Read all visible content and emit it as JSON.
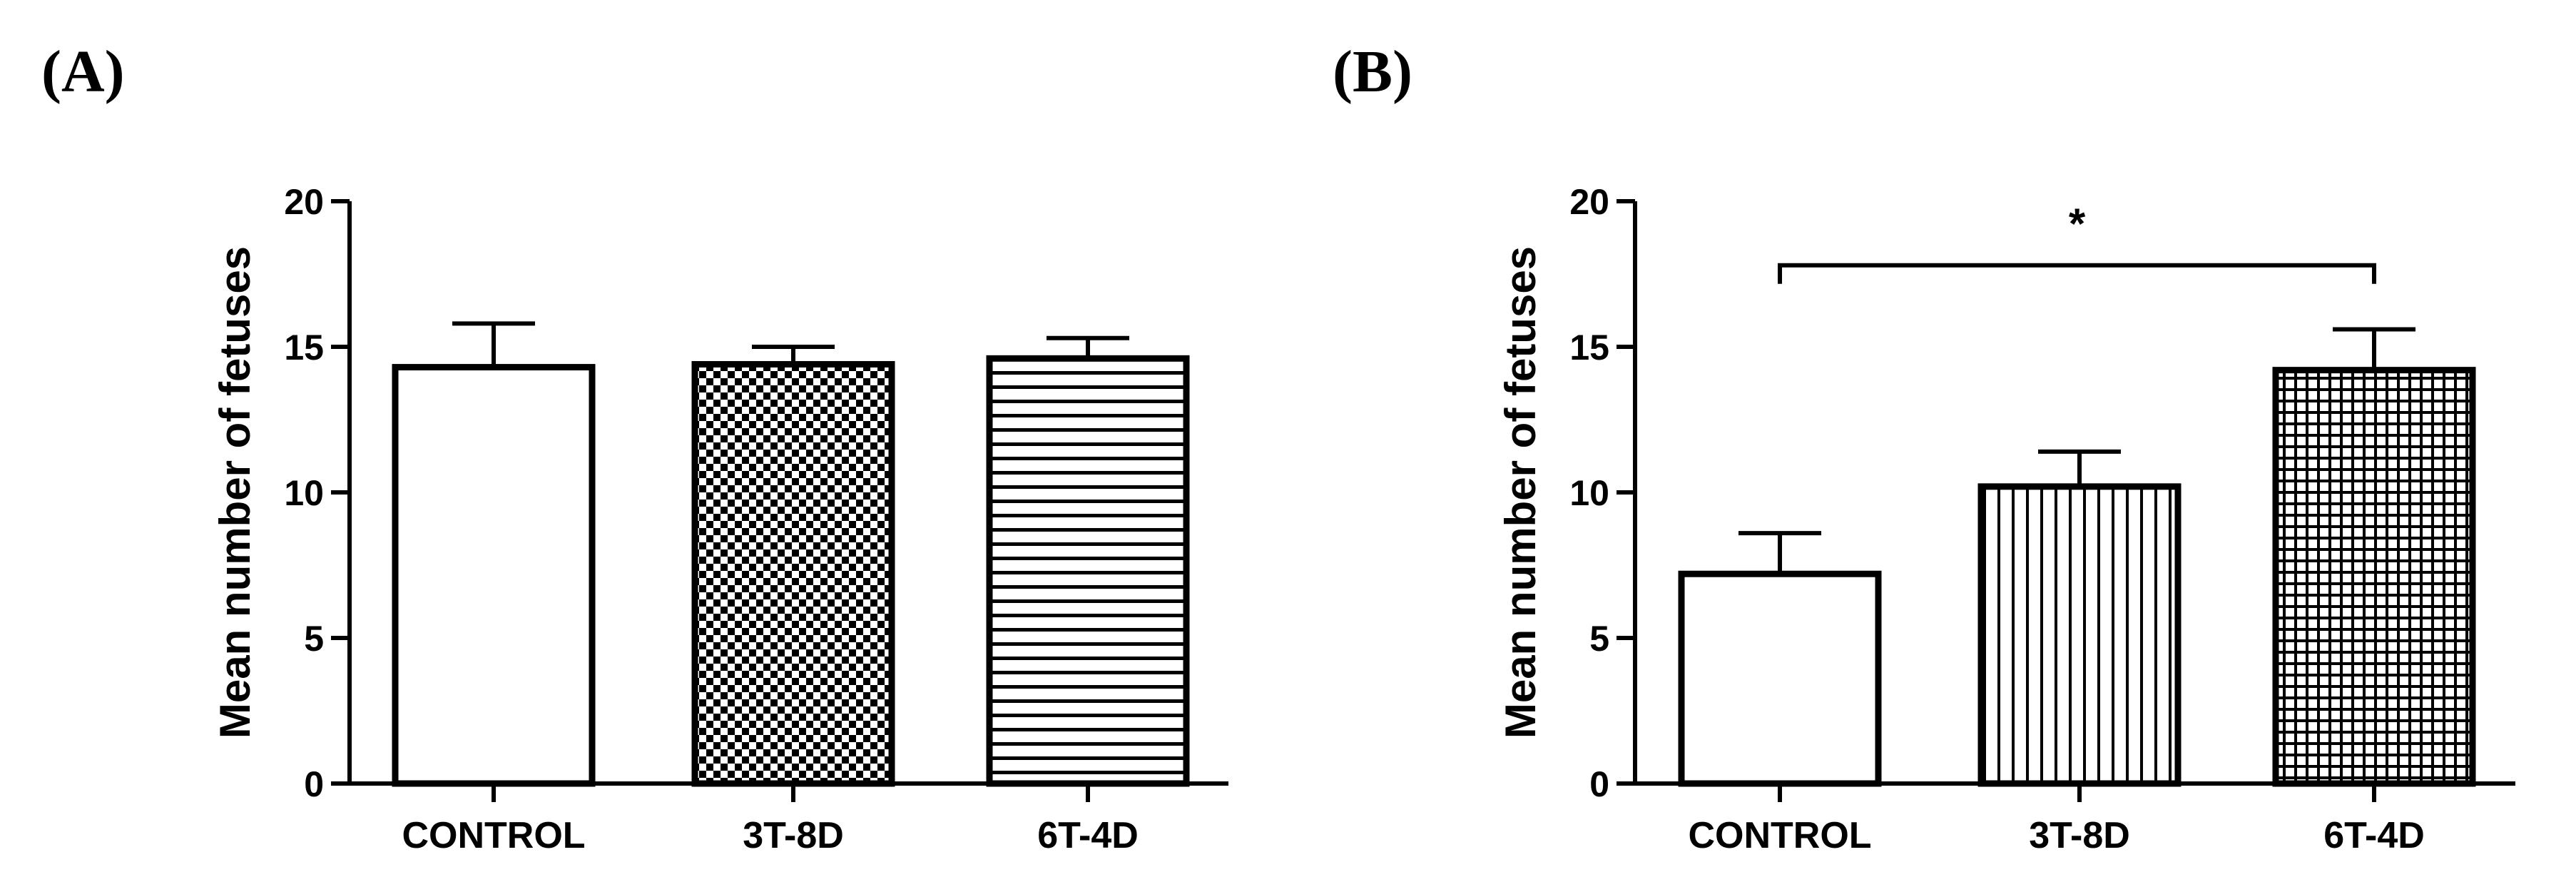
{
  "chart_data": [
    {
      "type": "bar",
      "panel_label": "(A)",
      "categories": [
        "CONTROL",
        "3T-8D",
        "6T-4D"
      ],
      "values": [
        14.3,
        14.4,
        14.6
      ],
      "errors": [
        1.5,
        0.6,
        0.7
      ],
      "patterns": [
        "none",
        "checker",
        "horizontal-lines"
      ],
      "ylabel": "Mean number of fetuses",
      "ylim": [
        0,
        20
      ],
      "yticks": [
        0,
        5,
        10,
        15,
        20
      ],
      "ytick_labels": [
        "0",
        "5",
        "10",
        "15",
        "20"
      ],
      "significance": []
    },
    {
      "type": "bar",
      "panel_label": "(B)",
      "categories": [
        "CONTROL",
        "3T-8D",
        "6T-4D"
      ],
      "values": [
        7.2,
        10.2,
        14.2
      ],
      "errors": [
        1.4,
        1.2,
        1.4
      ],
      "patterns": [
        "none",
        "vertical-lines",
        "grid"
      ],
      "ylabel": "Mean number of fetuses",
      "ylim": [
        0,
        20
      ],
      "yticks": [
        0,
        5,
        10,
        15,
        20
      ],
      "ytick_labels": [
        "0",
        "5",
        "10",
        "15",
        "20"
      ],
      "significance": [
        {
          "from": 0,
          "to": 2,
          "label": "*",
          "y": 17.8
        }
      ]
    }
  ]
}
